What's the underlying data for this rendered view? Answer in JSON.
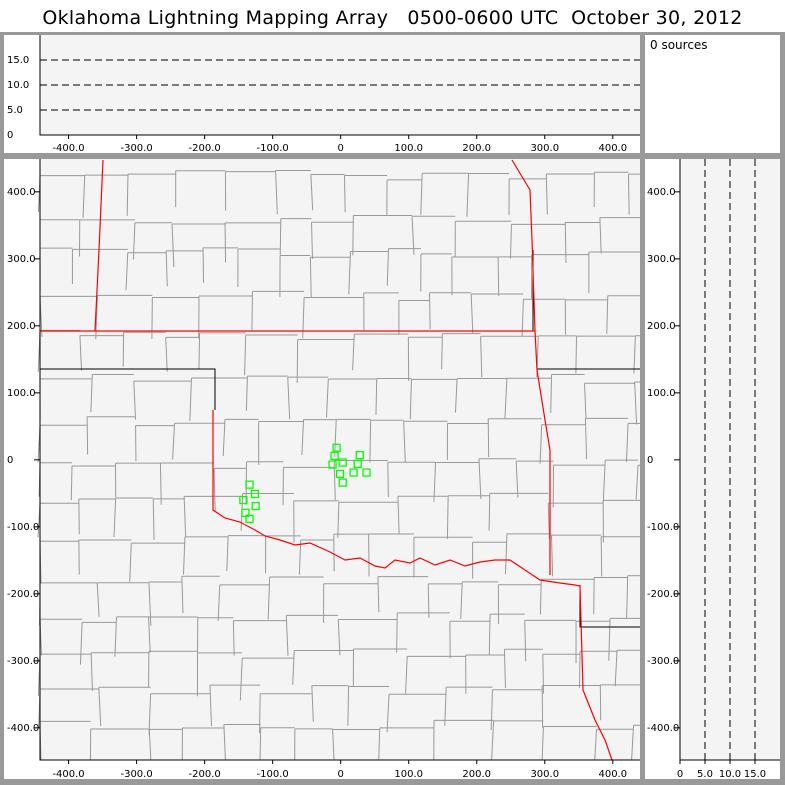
{
  "title": "Oklahoma Lightning Mapping Array   0500-0600 UTC  October 30, 2012",
  "source_count_label": "0 sources",
  "colors": {
    "background": "#999999",
    "plot_bg": "#f4f4f4",
    "county": "#999999",
    "state_border": "#000000",
    "oklahoma_border": "#ff0000",
    "station": "#00ff00"
  },
  "chart_data": [
    {
      "type": "line",
      "panel": "altitude-vs-east-west",
      "xlim": [
        -442,
        440
      ],
      "ylim": [
        0,
        20
      ],
      "xticks": [
        "-400.0",
        "-300.0",
        "-200.0",
        "-100.0",
        "0",
        "100.0",
        "200.0",
        "300.0",
        "400.0"
      ],
      "yticks": [
        "0",
        "5.0",
        "10.0",
        "15.0"
      ],
      "grid": "dashed horizontal at 5,10,15",
      "series": []
    },
    {
      "type": "scatter",
      "panel": "plan-view-map",
      "xlim": [
        -442,
        440
      ],
      "ylim": [
        -448,
        449
      ],
      "xticks": [
        "-400.0",
        "-300.0",
        "-200.0",
        "-100.0",
        "0",
        "100.0",
        "200.0",
        "300.0",
        "400.0"
      ],
      "yticks": [
        "400.0",
        "300.0",
        "200.0",
        "100.0",
        "0",
        "-100.0",
        "-200.0",
        "-300.0",
        "-400.0"
      ],
      "stations": {
        "marker": "square",
        "x": [
          -6,
          -9,
          28,
          -12,
          3,
          25,
          -1,
          19,
          38,
          3,
          -134,
          -126,
          -143,
          -125,
          -140,
          -134
        ],
        "y": [
          18,
          6,
          7,
          -7,
          -4,
          -6,
          -21,
          -19,
          -19,
          -34,
          -37,
          -51,
          -60,
          -69,
          -79,
          -88
        ]
      }
    },
    {
      "type": "line",
      "panel": "north-south-vs-altitude",
      "xlim": [
        0,
        20
      ],
      "ylim": [
        -448,
        449
      ],
      "xticks": [
        "0",
        "5.0",
        "10.0",
        "15.0"
      ],
      "yticks": [
        "400.0",
        "300.0",
        "200.0",
        "100.0",
        "0",
        "-100.0",
        "-200.0",
        "-300.0",
        "-400.0"
      ],
      "grid": "dashed vertical at 5,10,15",
      "series": []
    }
  ]
}
